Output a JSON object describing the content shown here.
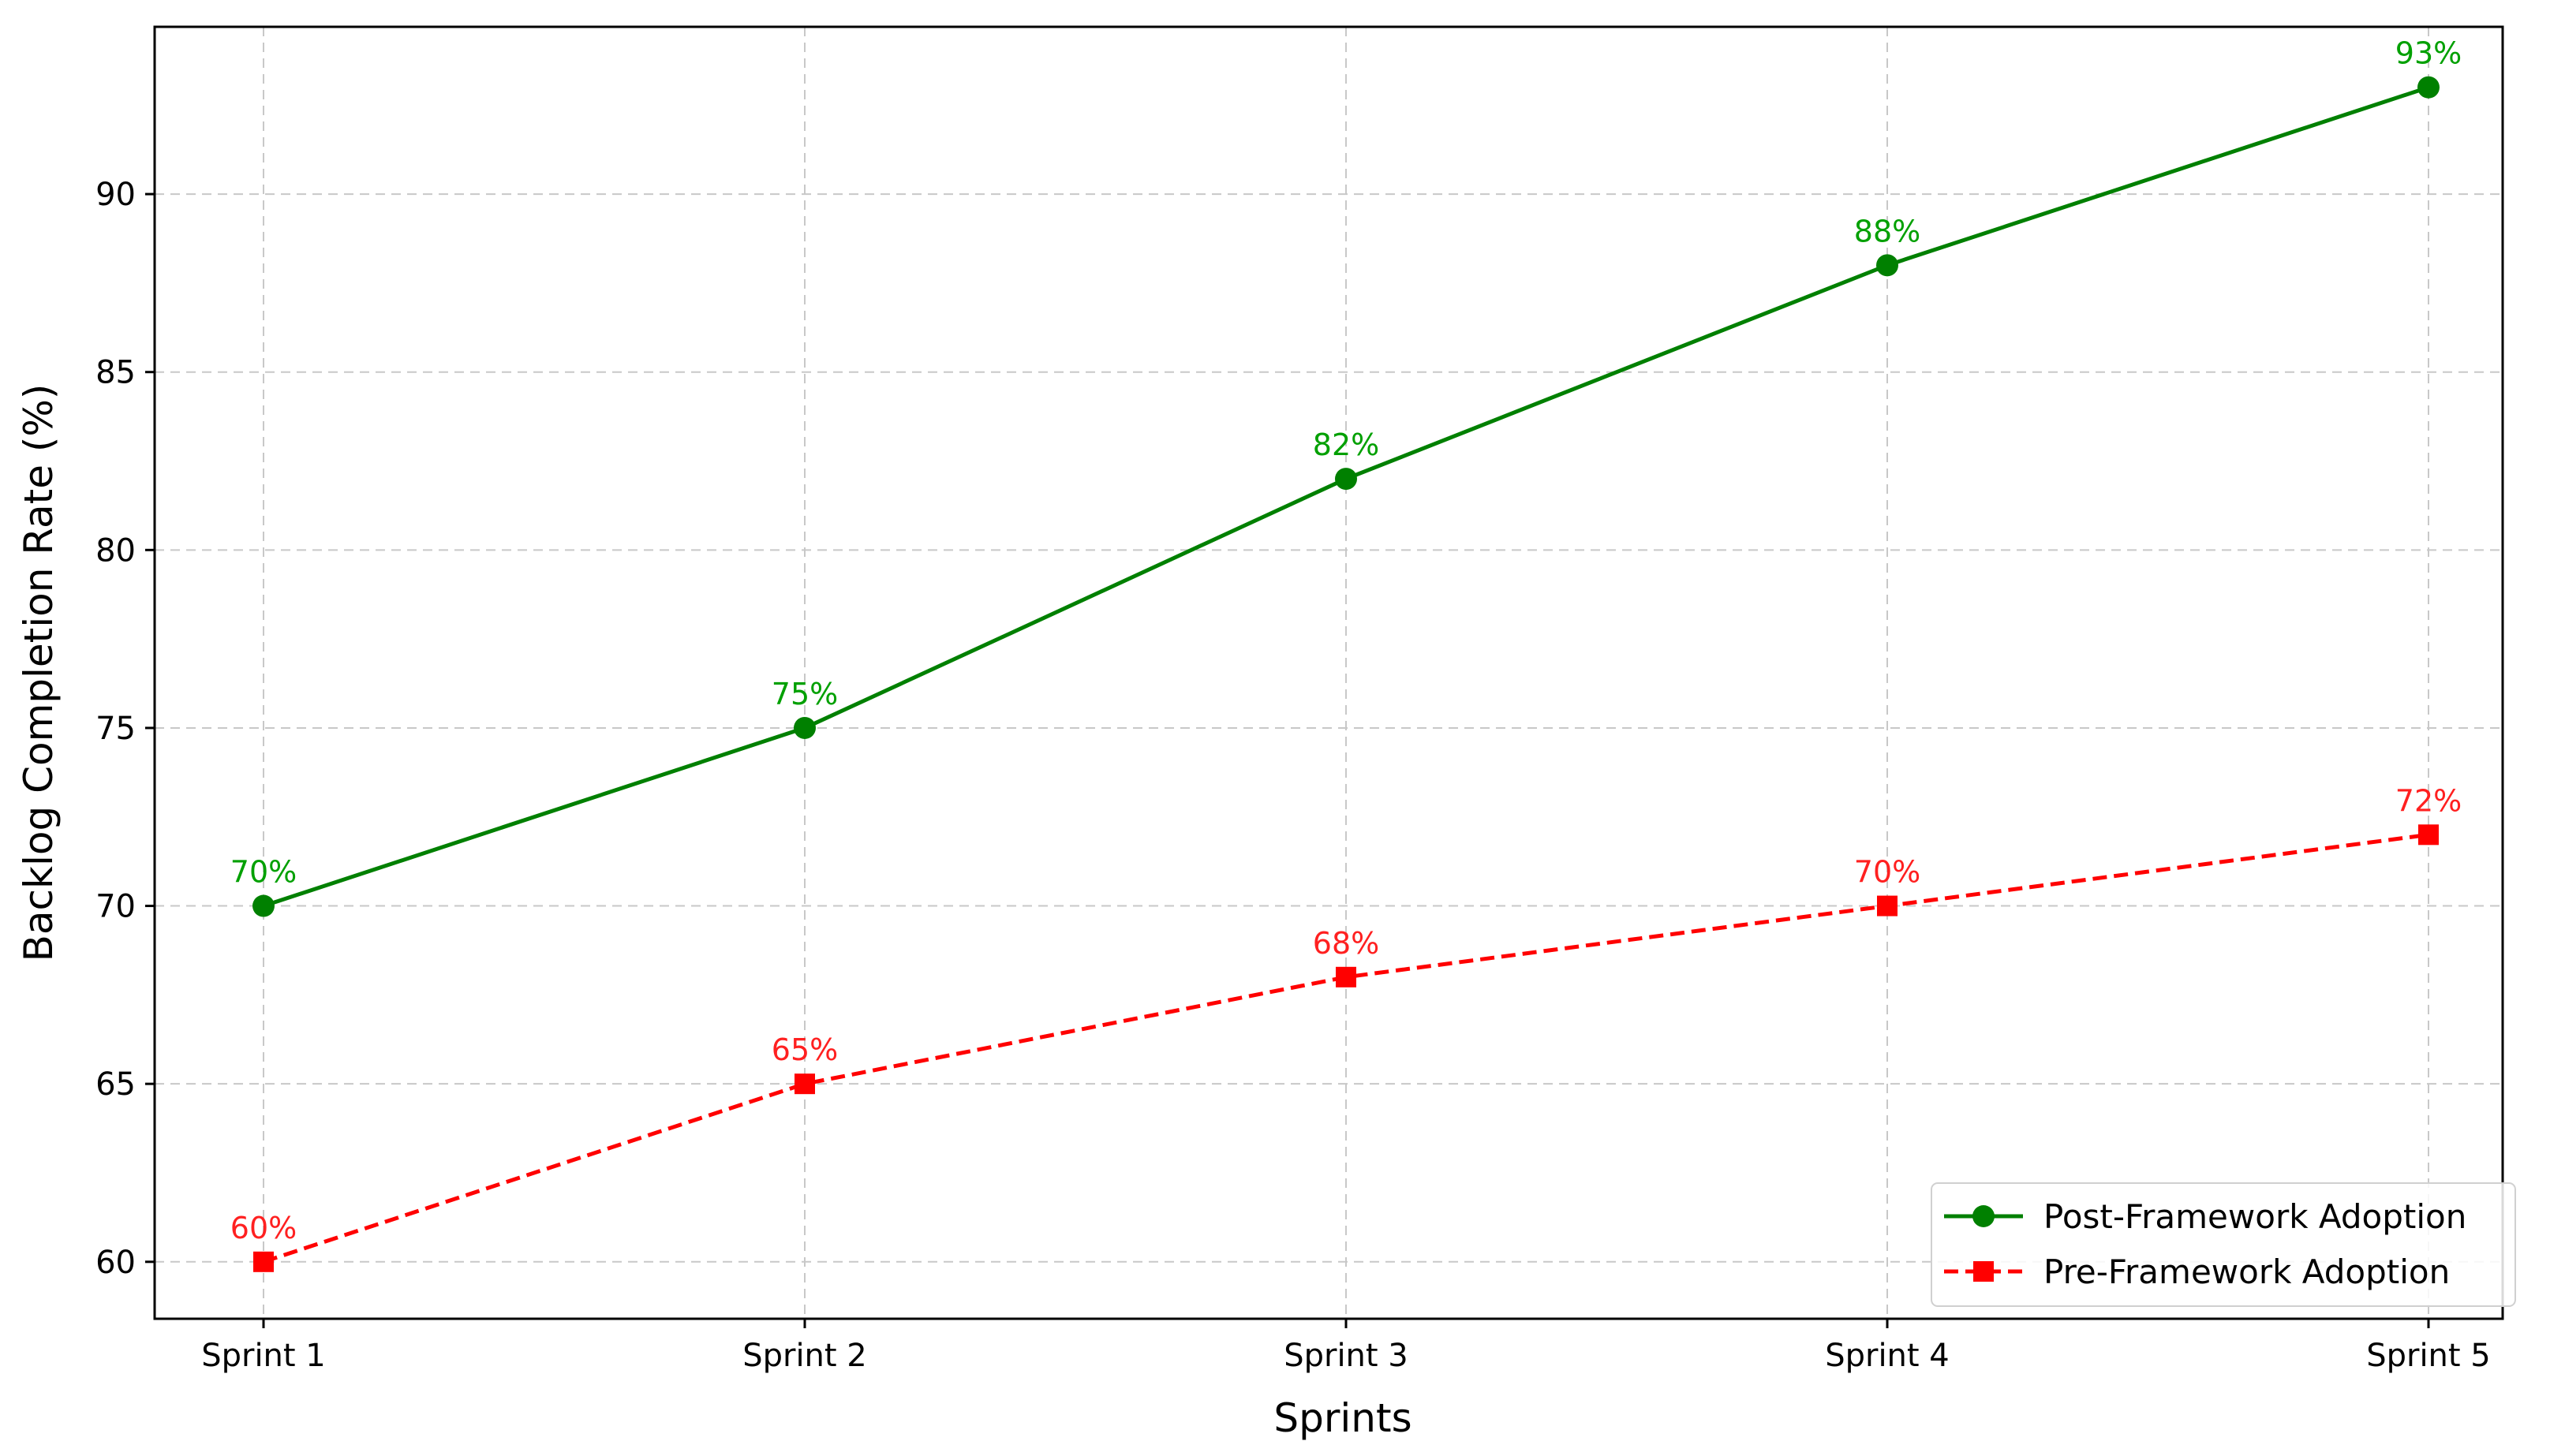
{
  "chart_data": {
    "type": "line",
    "title": "",
    "xlabel": "Sprints",
    "ylabel": "Backlog Completion Rate (%)",
    "categories": [
      "Sprint 1",
      "Sprint 2",
      "Sprint 3",
      "Sprint 4",
      "Sprint 5"
    ],
    "ylim": [
      58.4,
      94.7
    ],
    "yticks": [
      60,
      65,
      70,
      75,
      80,
      85,
      90
    ],
    "grid": true,
    "legend_position": "bottom-right",
    "series": [
      {
        "name": "Post-Framework Adoption",
        "values": [
          70,
          75,
          82,
          88,
          93
        ],
        "labels": [
          "70%",
          "75%",
          "82%",
          "88%",
          "93%"
        ],
        "color": "#008000",
        "label_color": "#00a000",
        "marker": "circle",
        "line_style": "solid"
      },
      {
        "name": "Pre-Framework Adoption",
        "values": [
          60,
          65,
          68,
          70,
          72
        ],
        "labels": [
          "60%",
          "65%",
          "68%",
          "70%",
          "72%"
        ],
        "color": "#ff0000",
        "label_color": "#ff2020",
        "marker": "square",
        "line_style": "dashed"
      }
    ]
  }
}
